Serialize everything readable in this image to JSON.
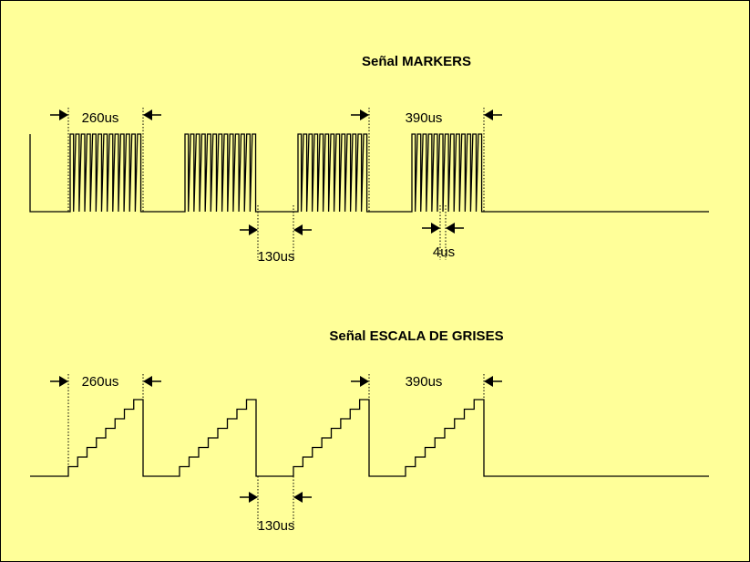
{
  "markers": {
    "title": "Señal MARKERS",
    "width_label": "260us",
    "gap_label": "130us",
    "pulse_label": "4us",
    "long_label": "390us"
  },
  "grises": {
    "title": "Señal ESCALA DE GRISES",
    "width_label": "260us",
    "gap_label": "130us",
    "long_label": "390us"
  }
}
